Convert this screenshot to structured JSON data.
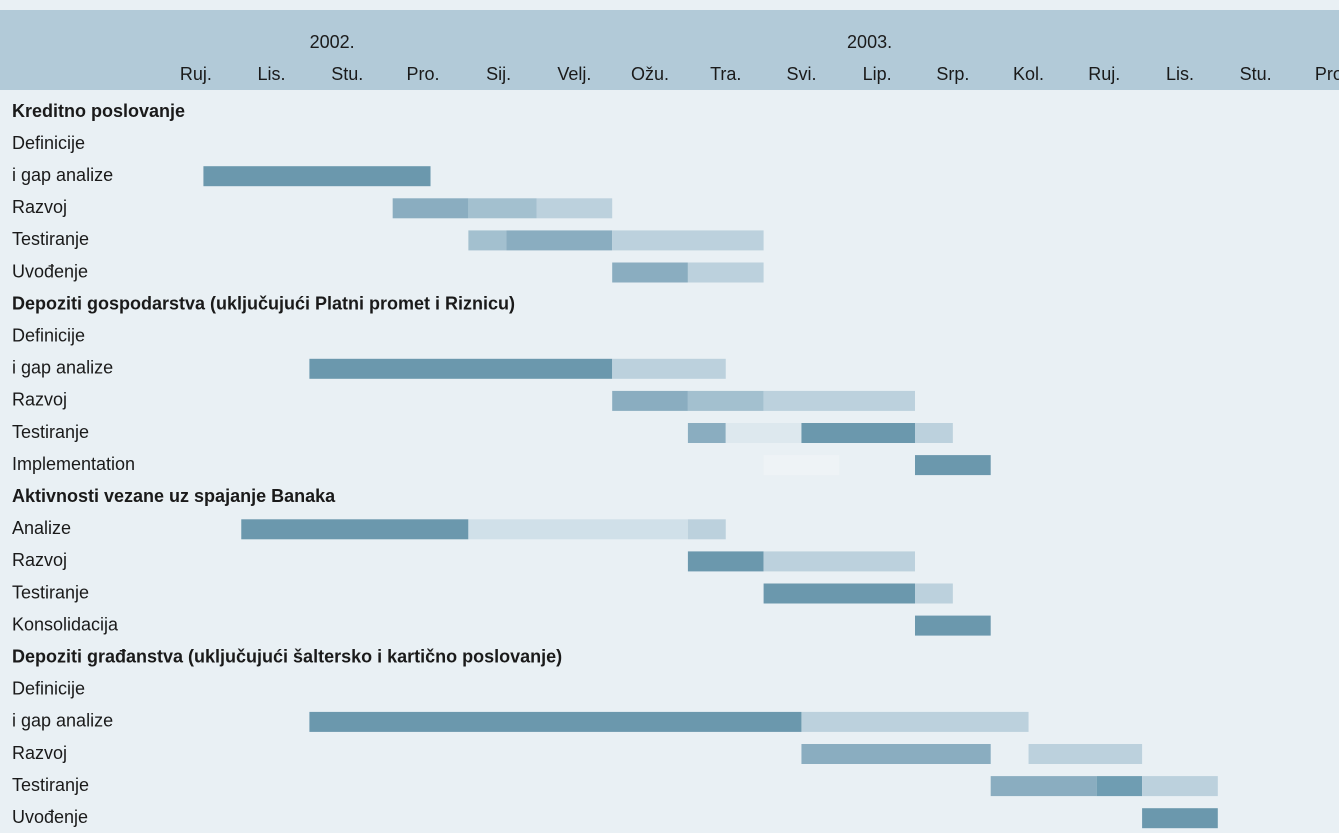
{
  "chart_data": {
    "type": "gantt",
    "years": [
      "2002.",
      "2003."
    ],
    "months": [
      "Ruj.",
      "Lis.",
      "Stu.",
      "Pro.",
      "Sij.",
      "Velj.",
      "Ožu.",
      "Tra.",
      "Svi.",
      "Lip.",
      "Srp.",
      "Kol.",
      "Ruj.",
      "Lis.",
      "Stu.",
      "Pro."
    ],
    "groups": [
      {
        "name": "Kreditno poslovanje",
        "tasks": [
          {
            "lines": [
              "Definicije",
              "i gap analize"
            ],
            "bars": [
              {
                "start": 0.6,
                "end": 3.6,
                "color": "#6b98ad"
              }
            ]
          },
          {
            "lines": [
              "Razvoj"
            ],
            "bars": [
              {
                "start": 3.1,
                "end": 4.1,
                "color": "#8aadc0"
              },
              {
                "start": 4.1,
                "end": 5.0,
                "color": "#a3c0cf"
              },
              {
                "start": 5.0,
                "end": 6.0,
                "color": "#bcd1dd"
              }
            ]
          },
          {
            "lines": [
              "Testiranje"
            ],
            "bars": [
              {
                "start": 4.1,
                "end": 4.6,
                "color": "#a3c0cf"
              },
              {
                "start": 4.6,
                "end": 6.0,
                "color": "#8aadc0"
              },
              {
                "start": 6.0,
                "end": 8.0,
                "color": "#bcd1dd"
              }
            ]
          },
          {
            "lines": [
              "Uvođenje"
            ],
            "bars": [
              {
                "start": 6.0,
                "end": 7.0,
                "color": "#8aadc0"
              },
              {
                "start": 7.0,
                "end": 8.0,
                "color": "#bcd1dd"
              }
            ]
          }
        ]
      },
      {
        "name": "Depoziti gospodarstva (uključujući Platni promet i Riznicu)",
        "tasks": [
          {
            "lines": [
              "Definicije",
              "i gap analize"
            ],
            "bars": [
              {
                "start": 2.0,
                "end": 6.0,
                "color": "#6b98ad"
              },
              {
                "start": 6.0,
                "end": 7.5,
                "color": "#bcd1dd"
              }
            ]
          },
          {
            "lines": [
              "Razvoj"
            ],
            "bars": [
              {
                "start": 6.0,
                "end": 7.0,
                "color": "#8aadc0"
              },
              {
                "start": 7.0,
                "end": 8.0,
                "color": "#a3c0cf"
              },
              {
                "start": 8.0,
                "end": 10.0,
                "color": "#bcd1dd"
              }
            ]
          },
          {
            "lines": [
              "Testiranje"
            ],
            "bars": [
              {
                "start": 7.0,
                "end": 7.5,
                "color": "#8aadc0"
              },
              {
                "start": 7.5,
                "end": 8.5,
                "color": "#dde8ee"
              },
              {
                "start": 8.5,
                "end": 10.0,
                "color": "#6b98ad"
              },
              {
                "start": 10.0,
                "end": 10.5,
                "color": "#bcd1dd"
              }
            ]
          },
          {
            "lines": [
              "Implementation"
            ],
            "bars": [
              {
                "start": 8.0,
                "end": 9.0,
                "color": "#eef3f6"
              },
              {
                "start": 10.0,
                "end": 11.0,
                "color": "#6b98ad"
              }
            ]
          }
        ]
      },
      {
        "name": "Aktivnosti vezane uz spajanje Banaka",
        "tasks": [
          {
            "lines": [
              "Analize"
            ],
            "bars": [
              {
                "start": 1.1,
                "end": 4.1,
                "color": "#6b98ad"
              },
              {
                "start": 4.1,
                "end": 7.0,
                "color": "#d0e0e9"
              },
              {
                "start": 7.0,
                "end": 7.5,
                "color": "#bcd1dd"
              }
            ]
          },
          {
            "lines": [
              "Razvoj"
            ],
            "bars": [
              {
                "start": 7.0,
                "end": 8.0,
                "color": "#6b98ad"
              },
              {
                "start": 8.0,
                "end": 10.0,
                "color": "#bcd1dd"
              }
            ]
          },
          {
            "lines": [
              "Testiranje"
            ],
            "bars": [
              {
                "start": 8.0,
                "end": 10.0,
                "color": "#6b98ad"
              },
              {
                "start": 10.0,
                "end": 10.5,
                "color": "#bcd1dd"
              }
            ]
          },
          {
            "lines": [
              "Konsolidacija"
            ],
            "bars": [
              {
                "start": 10.0,
                "end": 11.0,
                "color": "#6b98ad"
              }
            ]
          }
        ]
      },
      {
        "name": "Depoziti građanstva (uključujući šaltersko i kartično poslovanje)",
        "tasks": [
          {
            "lines": [
              "Definicije",
              "i gap analize"
            ],
            "bars": [
              {
                "start": 2.0,
                "end": 8.5,
                "color": "#6b98ad"
              },
              {
                "start": 8.5,
                "end": 11.5,
                "color": "#bcd1dd"
              }
            ]
          },
          {
            "lines": [
              "Razvoj"
            ],
            "bars": [
              {
                "start": 8.5,
                "end": 11.0,
                "color": "#8aadc0"
              },
              {
                "start": 11.5,
                "end": 13.0,
                "color": "#bcd1dd"
              }
            ]
          },
          {
            "lines": [
              "Testiranje"
            ],
            "bars": [
              {
                "start": 11.0,
                "end": 12.4,
                "color": "#8aadc0"
              },
              {
                "start": 12.4,
                "end": 13.0,
                "color": "#6f9db2"
              },
              {
                "start": 13.0,
                "end": 14.0,
                "color": "#bcd1dd"
              }
            ]
          },
          {
            "lines": [
              "Uvođenje"
            ],
            "bars": [
              {
                "start": 13.0,
                "end": 14.0,
                "color": "#6b98ad"
              }
            ]
          }
        ]
      }
    ]
  }
}
